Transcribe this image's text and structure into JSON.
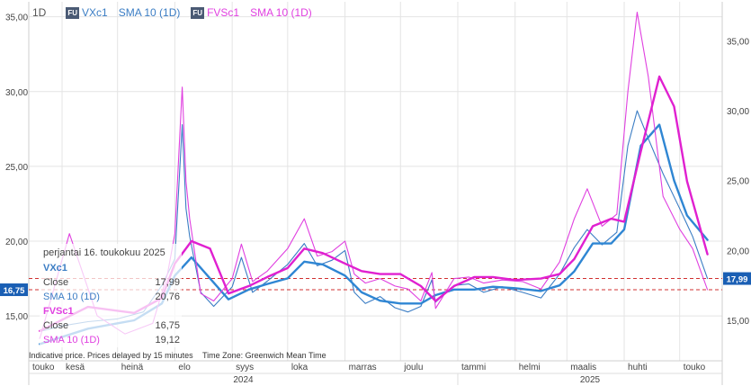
{
  "toolbar": {
    "interval": "1D",
    "series1_badge": "FU",
    "series1_symbol": "VXc1",
    "series1_sma": "SMA 10 (1D)",
    "series2_badge": "FU",
    "series2_symbol": "FVSc1",
    "series2_sma": "SMA 10 (1D)"
  },
  "tooltip": {
    "date": "perjantai 16. toukokuu 2025",
    "s1_name": "VXc1",
    "s1_close_label": "Close",
    "s1_close": "17,99",
    "s1_sma_label": "SMA 10 (1D)",
    "s1_sma": "20,76",
    "s2_name": "FVSc1",
    "s2_close_label": "Close",
    "s2_close": "16,75",
    "s2_sma_label": "SMA 10 (1D)",
    "s2_sma": "19,12"
  },
  "footer": {
    "disclaimer": "Indicative price. Prices delayed by 15 minutes",
    "timezone": "Time Zone: Greenwich Mean Time"
  },
  "colors": {
    "vx": "#3b7dc4",
    "vx_sma": "#2f86d3",
    "fv": "#e040e0",
    "fv_sma": "#e020d0",
    "ref_line": "#d03030"
  },
  "chart_data": {
    "type": "line",
    "left_axis": {
      "range": [
        12.0,
        36.0
      ],
      "ticks": [
        "15,00",
        "20,00",
        "25,00",
        "30,00",
        "35,00"
      ],
      "tick_values": [
        15,
        20,
        25,
        30,
        35
      ]
    },
    "right_axis": {
      "range": [
        12.1,
        37.8
      ],
      "ticks": [
        "15,00",
        "20,00",
        "25,00",
        "30,00",
        "35,00"
      ],
      "tick_values": [
        15,
        20,
        25,
        30,
        35
      ]
    },
    "x_months": [
      "touko",
      "kesä",
      "heinä",
      "elo",
      "syys",
      "loka",
      "marras",
      "joulu",
      "tammi",
      "helmi",
      "maalis",
      "huhti",
      "touko"
    ],
    "x_years": [
      "2024",
      "2025"
    ],
    "last_values": {
      "left": "16,75",
      "right": "17,99"
    },
    "grid": true,
    "series": [
      {
        "name": "VXc1",
        "axis": "right",
        "x": [
          "2024-05-20",
          "2024-06-01",
          "2024-06-15",
          "2024-07-01",
          "2024-07-15",
          "2024-07-25",
          "2024-08-01",
          "2024-08-05",
          "2024-08-07",
          "2024-08-09",
          "2024-08-15",
          "2024-08-22",
          "2024-09-01",
          "2024-09-06",
          "2024-09-12",
          "2024-09-20",
          "2024-10-01",
          "2024-10-10",
          "2024-10-17",
          "2024-10-25",
          "2024-11-01",
          "2024-11-06",
          "2024-11-12",
          "2024-11-20",
          "2024-11-28",
          "2024-12-05",
          "2024-12-12",
          "2024-12-18",
          "2024-12-20",
          "2024-12-30",
          "2025-01-07",
          "2025-01-15",
          "2025-01-25",
          "2025-02-05",
          "2025-02-15",
          "2025-02-25",
          "2025-03-05",
          "2025-03-12",
          "2025-03-20",
          "2025-03-28",
          "2025-04-03",
          "2025-04-08",
          "2025-04-14",
          "2025-04-22",
          "2025-05-01",
          "2025-05-08",
          "2025-05-16"
        ],
        "values": [
          14.2,
          14.6,
          14.9,
          15.1,
          15.6,
          17.5,
          19.4,
          29.0,
          23.0,
          21.0,
          17.0,
          16.0,
          17.4,
          19.5,
          17.0,
          17.8,
          19.0,
          20.5,
          18.9,
          19.3,
          20.0,
          17.0,
          16.2,
          16.7,
          15.9,
          15.6,
          16.0,
          17.9,
          16.3,
          17.5,
          17.6,
          17.0,
          17.4,
          17.0,
          16.6,
          18.3,
          20.2,
          21.5,
          20.4,
          21.3,
          27.5,
          30.0,
          28.0,
          25.5,
          23.0,
          21.0,
          17.99
        ]
      },
      {
        "name": "VXc1 SMA 10",
        "axis": "right",
        "x": [
          "2024-05-20",
          "2024-06-15",
          "2024-07-10",
          "2024-07-25",
          "2024-08-01",
          "2024-08-10",
          "2024-08-20",
          "2024-08-30",
          "2024-09-10",
          "2024-09-20",
          "2024-10-01",
          "2024-10-10",
          "2024-10-20",
          "2024-11-01",
          "2024-11-10",
          "2024-11-20",
          "2024-12-01",
          "2024-12-12",
          "2024-12-20",
          "2024-12-30",
          "2025-01-10",
          "2025-01-20",
          "2025-02-01",
          "2025-02-15",
          "2025-02-25",
          "2025-03-05",
          "2025-03-15",
          "2025-03-25",
          "2025-04-01",
          "2025-04-10",
          "2025-04-20",
          "2025-04-28",
          "2025-05-05",
          "2025-05-16"
        ],
        "values": [
          13.3,
          14.4,
          15.0,
          16.2,
          18.2,
          19.5,
          18.0,
          16.5,
          17.2,
          17.6,
          18.0,
          19.2,
          19.0,
          18.2,
          17.0,
          16.4,
          16.2,
          16.2,
          16.8,
          17.2,
          17.2,
          17.4,
          17.3,
          17.1,
          17.5,
          18.5,
          20.5,
          20.5,
          21.5,
          27.5,
          29.0,
          25.0,
          22.5,
          20.76
        ]
      },
      {
        "name": "FVSc1",
        "axis": "left",
        "x": [
          "2024-05-20",
          "2024-06-05",
          "2024-06-20",
          "2024-07-05",
          "2024-07-20",
          "2024-07-28",
          "2024-08-01",
          "2024-08-05",
          "2024-08-07",
          "2024-08-09",
          "2024-08-15",
          "2024-08-22",
          "2024-09-01",
          "2024-09-06",
          "2024-09-12",
          "2024-09-20",
          "2024-10-01",
          "2024-10-10",
          "2024-10-17",
          "2024-10-25",
          "2024-11-01",
          "2024-11-06",
          "2024-11-12",
          "2024-11-20",
          "2024-11-28",
          "2024-12-05",
          "2024-12-12",
          "2024-12-18",
          "2024-12-20",
          "2024-12-30",
          "2025-01-07",
          "2025-01-15",
          "2025-01-25",
          "2025-02-05",
          "2025-02-15",
          "2025-02-25",
          "2025-03-05",
          "2025-03-12",
          "2025-03-20",
          "2025-03-28",
          "2025-04-03",
          "2025-04-08",
          "2025-04-14",
          "2025-04-22",
          "2025-05-01",
          "2025-05-08",
          "2025-05-16"
        ],
        "values": [
          13.5,
          20.5,
          15.0,
          13.8,
          14.5,
          17.8,
          20.5,
          30.3,
          24.0,
          21.5,
          16.5,
          16.0,
          17.5,
          19.8,
          17.3,
          18.0,
          19.5,
          21.5,
          19.0,
          19.3,
          20.0,
          17.8,
          17.2,
          17.5,
          17.0,
          16.8,
          16.0,
          17.9,
          15.5,
          17.5,
          17.6,
          17.2,
          17.4,
          17.3,
          16.8,
          18.6,
          21.5,
          23.5,
          21.0,
          21.8,
          30.0,
          35.3,
          31.0,
          23.0,
          20.8,
          19.5,
          16.75
        ]
      },
      {
        "name": "FVSc1 SMA 10",
        "axis": "left",
        "x": [
          "2024-05-20",
          "2024-06-15",
          "2024-07-10",
          "2024-07-25",
          "2024-08-01",
          "2024-08-10",
          "2024-08-20",
          "2024-08-30",
          "2024-09-10",
          "2024-09-20",
          "2024-10-01",
          "2024-10-10",
          "2024-10-20",
          "2024-11-01",
          "2024-11-10",
          "2024-11-20",
          "2024-12-01",
          "2024-12-12",
          "2024-12-20",
          "2024-12-30",
          "2025-01-10",
          "2025-01-20",
          "2025-02-01",
          "2025-02-15",
          "2025-02-25",
          "2025-03-05",
          "2025-03-15",
          "2025-03-25",
          "2025-04-01",
          "2025-04-10",
          "2025-04-20",
          "2025-04-28",
          "2025-05-05",
          "2025-05-16"
        ],
        "values": [
          14.0,
          15.6,
          15.2,
          16.2,
          18.5,
          20.0,
          19.5,
          16.5,
          17.0,
          17.6,
          18.2,
          19.5,
          19.2,
          18.5,
          18.0,
          17.8,
          17.8,
          17.0,
          16.0,
          17.0,
          17.6,
          17.6,
          17.4,
          17.5,
          17.8,
          18.8,
          21.0,
          21.5,
          21.3,
          26.0,
          31.0,
          29.0,
          24.0,
          19.12
        ]
      }
    ]
  }
}
